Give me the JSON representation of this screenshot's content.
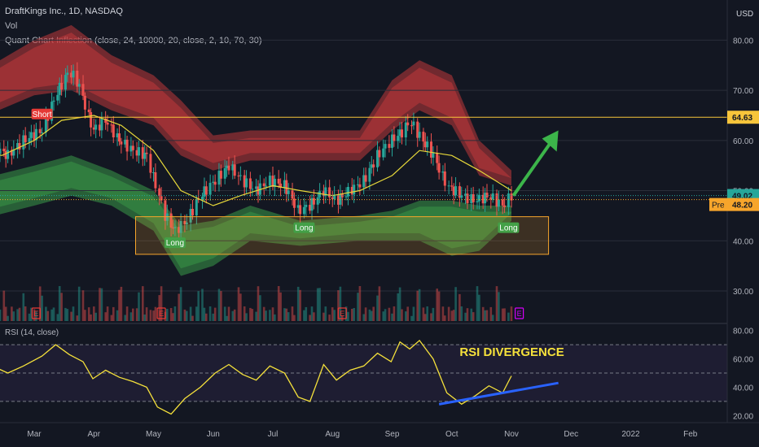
{
  "header": {
    "symbol_line": "DraftKings Inc., 1D, NASDAQ",
    "vol_label": "Vol",
    "indicator_label": "Quant Chart Inflection (close, 24, 10000, 20, close, 2, 10, 70, 30)",
    "rsi_label": "RSI (14, close)",
    "currency": "USD"
  },
  "colors": {
    "background": "#131722",
    "up": "#26a69a",
    "down": "#ef5350",
    "red_band": "#c0393b",
    "green_band": "#3a9b48",
    "ma_line": "#e6d83a",
    "rsi_line": "#f5e13b",
    "trend_line": "#2962ff",
    "arrow": "#3cb54a",
    "box": "#f7a52b",
    "resistance": "#f7c53b",
    "current_price": "#26a69a",
    "premarket": "#f7a52b"
  },
  "chart_data": [
    {
      "type": "candlestick",
      "title": "DraftKings Inc., 1D, NASDAQ",
      "xlabel": "",
      "ylabel": "USD",
      "x_ticks": [
        "Mar",
        "Apr",
        "May",
        "Jun",
        "Jul",
        "Aug",
        "Sep",
        "Oct",
        "Nov",
        "Dec",
        "2022",
        "Feb"
      ],
      "y_ticks": [
        30,
        40,
        50,
        60,
        70,
        80
      ],
      "ylim": [
        24,
        88
      ],
      "close_series": [
        {
          "x": "Feb 01",
          "y": 63
        },
        {
          "x": "Feb 10",
          "y": 59
        },
        {
          "x": "Feb 18",
          "y": 57
        },
        {
          "x": "Feb 26",
          "y": 60
        },
        {
          "x": "Mar 05",
          "y": 62
        },
        {
          "x": "Mar 12",
          "y": 69
        },
        {
          "x": "Mar 19",
          "y": 74
        },
        {
          "x": "Mar 24",
          "y": 71
        },
        {
          "x": "Mar 31",
          "y": 62
        },
        {
          "x": "Apr 07",
          "y": 64
        },
        {
          "x": "Apr 14",
          "y": 60
        },
        {
          "x": "Apr 21",
          "y": 58
        },
        {
          "x": "Apr 28",
          "y": 57
        },
        {
          "x": "May 03",
          "y": 50
        },
        {
          "x": "May 07",
          "y": 45
        },
        {
          "x": "May 12",
          "y": 42
        },
        {
          "x": "May 18",
          "y": 44
        },
        {
          "x": "May 25",
          "y": 49
        },
        {
          "x": "Jun 02",
          "y": 52
        },
        {
          "x": "Jun 09",
          "y": 55
        },
        {
          "x": "Jun 16",
          "y": 52
        },
        {
          "x": "Jun 23",
          "y": 50
        },
        {
          "x": "Jun 30",
          "y": 52
        },
        {
          "x": "Jul 07",
          "y": 51
        },
        {
          "x": "Jul 14",
          "y": 46
        },
        {
          "x": "Jul 20",
          "y": 47
        },
        {
          "x": "Jul 27",
          "y": 50
        },
        {
          "x": "Aug 03",
          "y": 48
        },
        {
          "x": "Aug 10",
          "y": 50
        },
        {
          "x": "Aug 17",
          "y": 52
        },
        {
          "x": "Aug 24",
          "y": 57
        },
        {
          "x": "Aug 31",
          "y": 60
        },
        {
          "x": "Sep 07",
          "y": 62
        },
        {
          "x": "Sep 10",
          "y": 64
        },
        {
          "x": "Sep 15",
          "y": 61
        },
        {
          "x": "Sep 22",
          "y": 57
        },
        {
          "x": "Sep 29",
          "y": 51
        },
        {
          "x": "Oct 06",
          "y": 49
        },
        {
          "x": "Oct 13",
          "y": 48
        },
        {
          "x": "Oct 20",
          "y": 49
        },
        {
          "x": "Oct 27",
          "y": 47
        },
        {
          "x": "Nov 01",
          "y": 49.02
        }
      ],
      "ma_series": [
        {
          "x": "Feb 01",
          "y": 58
        },
        {
          "x": "Feb 15",
          "y": 57
        },
        {
          "x": "Mar 01",
          "y": 60
        },
        {
          "x": "Mar 15",
          "y": 64
        },
        {
          "x": "Apr 01",
          "y": 65
        },
        {
          "x": "Apr 15",
          "y": 63
        },
        {
          "x": "May 01",
          "y": 58
        },
        {
          "x": "May 15",
          "y": 50
        },
        {
          "x": "Jun 01",
          "y": 47
        },
        {
          "x": "Jun 15",
          "y": 49
        },
        {
          "x": "Jul 01",
          "y": 51
        },
        {
          "x": "Jul 15",
          "y": 50
        },
        {
          "x": "Aug 01",
          "y": 49
        },
        {
          "x": "Aug 15",
          "y": 50
        },
        {
          "x": "Sep 01",
          "y": 53
        },
        {
          "x": "Sep 15",
          "y": 58
        },
        {
          "x": "Oct 01",
          "y": 57
        },
        {
          "x": "Oct 15",
          "y": 54
        },
        {
          "x": "Nov 01",
          "y": 50
        }
      ],
      "red_band_upper": [
        {
          "x": "Feb 01",
          "y": 73
        },
        {
          "x": "Mar 01",
          "y": 80
        },
        {
          "x": "Mar 20",
          "y": 83
        },
        {
          "x": "Apr 10",
          "y": 77
        },
        {
          "x": "May 01",
          "y": 73
        },
        {
          "x": "May 15",
          "y": 68
        },
        {
          "x": "Jun 01",
          "y": 61
        },
        {
          "x": "Jun 20",
          "y": 62
        },
        {
          "x": "Jul 15",
          "y": 62
        },
        {
          "x": "Aug 15",
          "y": 62
        },
        {
          "x": "Sep 01",
          "y": 72
        },
        {
          "x": "Sep 15",
          "y": 76
        },
        {
          "x": "Oct 01",
          "y": 73
        },
        {
          "x": "Oct 15",
          "y": 60
        },
        {
          "x": "Nov 01",
          "y": 54
        }
      ],
      "red_band_lower": [
        {
          "x": "Feb 01",
          "y": 64
        },
        {
          "x": "Mar 01",
          "y": 69
        },
        {
          "x": "Mar 20",
          "y": 70
        },
        {
          "x": "Apr 10",
          "y": 66
        },
        {
          "x": "May 01",
          "y": 63
        },
        {
          "x": "May 15",
          "y": 57
        },
        {
          "x": "Jun 01",
          "y": 54
        },
        {
          "x": "Jun 20",
          "y": 56
        },
        {
          "x": "Jul 15",
          "y": 56
        },
        {
          "x": "Aug 15",
          "y": 56
        },
        {
          "x": "Sep 01",
          "y": 62
        },
        {
          "x": "Sep 15",
          "y": 66
        },
        {
          "x": "Oct 01",
          "y": 63
        },
        {
          "x": "Oct 15",
          "y": 53
        },
        {
          "x": "Nov 01",
          "y": 51
        }
      ],
      "green_band_upper": [
        {
          "x": "Feb 01",
          "y": 52
        },
        {
          "x": "Mar 01",
          "y": 55
        },
        {
          "x": "Mar 20",
          "y": 57
        },
        {
          "x": "Apr 10",
          "y": 54
        },
        {
          "x": "May 01",
          "y": 50
        },
        {
          "x": "May 15",
          "y": 43
        },
        {
          "x": "Jun 01",
          "y": 44
        },
        {
          "x": "Jun 20",
          "y": 47
        },
        {
          "x": "Jul 15",
          "y": 44
        },
        {
          "x": "Aug 15",
          "y": 45
        },
        {
          "x": "Sep 01",
          "y": 46
        },
        {
          "x": "Sep 15",
          "y": 48
        },
        {
          "x": "Oct 01",
          "y": 48
        },
        {
          "x": "Oct 15",
          "y": 47
        },
        {
          "x": "Nov 01",
          "y": 47
        }
      ],
      "green_band_lower": [
        {
          "x": "Feb 01",
          "y": 44
        },
        {
          "x": "Mar 01",
          "y": 47
        },
        {
          "x": "Mar 20",
          "y": 49
        },
        {
          "x": "Apr 10",
          "y": 47
        },
        {
          "x": "May 01",
          "y": 42
        },
        {
          "x": "May 15",
          "y": 33
        },
        {
          "x": "Jun 01",
          "y": 35
        },
        {
          "x": "Jun 20",
          "y": 40
        },
        {
          "x": "Jul 15",
          "y": 39
        },
        {
          "x": "Aug 15",
          "y": 40
        },
        {
          "x": "Sep 01",
          "y": 40
        },
        {
          "x": "Sep 15",
          "y": 40
        },
        {
          "x": "Oct 01",
          "y": 37
        },
        {
          "x": "Oct 15",
          "y": 38
        },
        {
          "x": "Nov 01",
          "y": 44
        }
      ],
      "resistance_level": 64.63,
      "current_price": 49.02,
      "premarket_price": 48.2,
      "premarket_label": "Pre",
      "price_labels": {
        "resistance": "64.63",
        "current": "49.02",
        "premarket": "48.20"
      },
      "support_zone": {
        "x_start": "May 01",
        "x_end": "Nov 20",
        "y_low": 37.3,
        "y_high": 44.8
      },
      "signals": [
        {
          "label": "Short",
          "x": "Mar 05",
          "y": 66
        },
        {
          "label": "Long",
          "x": "May 12",
          "y": 41
        },
        {
          "label": "Long",
          "x": "Jul 17",
          "y": 44
        },
        {
          "label": "Long",
          "x": "Oct 30",
          "y": 44
        }
      ],
      "earnings_markers": [
        {
          "label": "E",
          "x": "Mar 02"
        },
        {
          "label": "E",
          "x": "May 05"
        },
        {
          "label": "E",
          "x": "Aug 06"
        },
        {
          "label": "E",
          "x": "Nov 05",
          "upcoming": true
        }
      ],
      "target_arrow": {
        "from": {
          "x": "Nov 02",
          "y": 49
        },
        "to": {
          "x": "Nov 25",
          "y": 62
        }
      }
    },
    {
      "type": "line",
      "title": "RSI (14, close)",
      "xlabel": "",
      "ylabel": "",
      "y_ticks": [
        20,
        40,
        60,
        80
      ],
      "ylim": [
        15,
        85
      ],
      "overbought": 70,
      "oversold": 30,
      "midline": 50,
      "series": [
        {
          "x": "Feb 01",
          "y": 65
        },
        {
          "x": "Feb 10",
          "y": 55
        },
        {
          "x": "Feb 18",
          "y": 50
        },
        {
          "x": "Feb 26",
          "y": 55
        },
        {
          "x": "Mar 05",
          "y": 62
        },
        {
          "x": "Mar 12",
          "y": 70
        },
        {
          "x": "Mar 19",
          "y": 63
        },
        {
          "x": "Mar 26",
          "y": 58
        },
        {
          "x": "Mar 31",
          "y": 46
        },
        {
          "x": "Apr 07",
          "y": 52
        },
        {
          "x": "Apr 14",
          "y": 47
        },
        {
          "x": "Apr 21",
          "y": 44
        },
        {
          "x": "Apr 28",
          "y": 40
        },
        {
          "x": "May 03",
          "y": 26
        },
        {
          "x": "May 10",
          "y": 21
        },
        {
          "x": "May 17",
          "y": 32
        },
        {
          "x": "May 25",
          "y": 40
        },
        {
          "x": "Jun 02",
          "y": 50
        },
        {
          "x": "Jun 09",
          "y": 56
        },
        {
          "x": "Jun 16",
          "y": 49
        },
        {
          "x": "Jun 23",
          "y": 45
        },
        {
          "x": "Jun 30",
          "y": 55
        },
        {
          "x": "Jul 07",
          "y": 50
        },
        {
          "x": "Jul 14",
          "y": 33
        },
        {
          "x": "Jul 20",
          "y": 30
        },
        {
          "x": "Jul 27",
          "y": 56
        },
        {
          "x": "Aug 03",
          "y": 45
        },
        {
          "x": "Aug 10",
          "y": 52
        },
        {
          "x": "Aug 17",
          "y": 55
        },
        {
          "x": "Aug 24",
          "y": 64
        },
        {
          "x": "Aug 31",
          "y": 58
        },
        {
          "x": "Sep 05",
          "y": 72
        },
        {
          "x": "Sep 10",
          "y": 67
        },
        {
          "x": "Sep 15",
          "y": 73
        },
        {
          "x": "Sep 22",
          "y": 60
        },
        {
          "x": "Sep 29",
          "y": 36
        },
        {
          "x": "Oct 06",
          "y": 28
        },
        {
          "x": "Oct 13",
          "y": 34
        },
        {
          "x": "Oct 20",
          "y": 41
        },
        {
          "x": "Oct 27",
          "y": 36
        },
        {
          "x": "Nov 01",
          "y": 48
        }
      ],
      "annotation": "RSI DIVERGENCE",
      "trend_line": {
        "from": {
          "x": "Sep 25",
          "y": 28
        },
        "to": {
          "x": "Nov 25",
          "y": 43
        }
      }
    }
  ]
}
